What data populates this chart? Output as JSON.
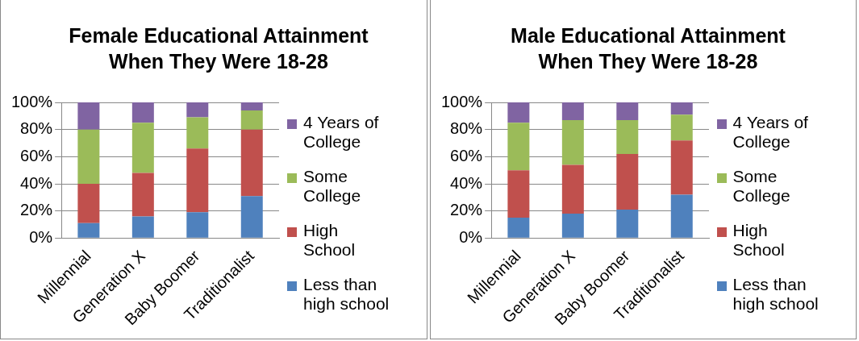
{
  "chart_data": [
    {
      "type": "bar",
      "title": "Female Educational Attainment When They Were 18-28",
      "categories": [
        "Millennial",
        "Generation X",
        "Baby Boomer",
        "Traditionalist"
      ],
      "stacked": true,
      "ylim": [
        0,
        100
      ],
      "yticks": [
        {
          "value": 0,
          "label": "0%"
        },
        {
          "value": 20,
          "label": "20%"
        },
        {
          "value": 40,
          "label": "40%"
        },
        {
          "value": 60,
          "label": "60%"
        },
        {
          "value": 80,
          "label": "80%"
        },
        {
          "value": 100,
          "label": "100%"
        }
      ],
      "grid": "y",
      "legend": "right",
      "series": [
        {
          "name": "Less than high school",
          "color": "#4f81bd",
          "values": [
            11,
            16,
            19,
            31
          ]
        },
        {
          "name": "High School",
          "color": "#c0504d",
          "values": [
            29,
            32,
            47,
            49
          ]
        },
        {
          "name": "Some College",
          "color": "#9bbb59",
          "values": [
            40,
            37,
            23,
            14
          ]
        },
        {
          "name": "4 Years of College",
          "color": "#8064a2",
          "values": [
            20,
            15,
            11,
            6
          ]
        }
      ]
    },
    {
      "type": "bar",
      "title": "Male Educational Attainment When They Were 18-28",
      "categories": [
        "Millennial",
        "Generation X",
        "Baby Boomer",
        "Traditionalist"
      ],
      "stacked": true,
      "ylim": [
        0,
        100
      ],
      "yticks": [
        {
          "value": 0,
          "label": "0%"
        },
        {
          "value": 20,
          "label": "20%"
        },
        {
          "value": 40,
          "label": "40%"
        },
        {
          "value": 60,
          "label": "60%"
        },
        {
          "value": 80,
          "label": "80%"
        },
        {
          "value": 100,
          "label": "100%"
        }
      ],
      "grid": "y",
      "legend": "right",
      "series": [
        {
          "name": "Less than high school",
          "color": "#4f81bd",
          "values": [
            15,
            18,
            21,
            32
          ]
        },
        {
          "name": "High School",
          "color": "#c0504d",
          "values": [
            35,
            36,
            41,
            40
          ]
        },
        {
          "name": "Some College",
          "color": "#9bbb59",
          "values": [
            35,
            33,
            25,
            19
          ]
        },
        {
          "name": "4 Years of College",
          "color": "#8064a2",
          "values": [
            15,
            13,
            13,
            9
          ]
        }
      ]
    }
  ]
}
